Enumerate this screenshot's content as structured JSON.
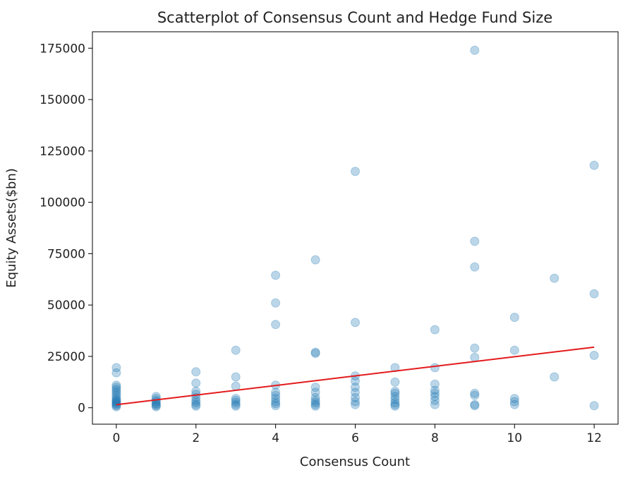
{
  "chart_data": {
    "type": "scatter",
    "title": "Scatterplot of Consensus Count and Hedge Fund Size",
    "xlabel": "Consensus Count",
    "ylabel": "Equity Assets($bn)",
    "xlim": [
      -0.6,
      12.6
    ],
    "ylim": [
      -8000,
      183000
    ],
    "xticks": [
      0,
      2,
      4,
      6,
      8,
      10,
      12
    ],
    "yticks": [
      0,
      25000,
      50000,
      75000,
      100000,
      125000,
      150000,
      175000
    ],
    "grid": false,
    "point_color": "#1f77b4",
    "point_opacity": 0.3,
    "points": [
      {
        "x": 0,
        "y": 19500
      },
      {
        "x": 0,
        "y": 17000
      },
      {
        "x": 0,
        "y": 11000
      },
      {
        "x": 0,
        "y": 10000
      },
      {
        "x": 0,
        "y": 9000
      },
      {
        "x": 0,
        "y": 8000
      },
      {
        "x": 0,
        "y": 7000
      },
      {
        "x": 0,
        "y": 6000
      },
      {
        "x": 0,
        "y": 5000
      },
      {
        "x": 0,
        "y": 4000
      },
      {
        "x": 0,
        "y": 3500
      },
      {
        "x": 0,
        "y": 3000
      },
      {
        "x": 0,
        "y": 2500
      },
      {
        "x": 0,
        "y": 2000
      },
      {
        "x": 0,
        "y": 1500
      },
      {
        "x": 0,
        "y": 1000
      },
      {
        "x": 0,
        "y": 500
      },
      {
        "x": 1,
        "y": 5500
      },
      {
        "x": 1,
        "y": 4500
      },
      {
        "x": 1,
        "y": 3500
      },
      {
        "x": 1,
        "y": 2800
      },
      {
        "x": 1,
        "y": 2000
      },
      {
        "x": 1,
        "y": 1500
      },
      {
        "x": 1,
        "y": 1000
      },
      {
        "x": 1,
        "y": 500
      },
      {
        "x": 2,
        "y": 17500
      },
      {
        "x": 2,
        "y": 12000
      },
      {
        "x": 2,
        "y": 8000
      },
      {
        "x": 2,
        "y": 6500
      },
      {
        "x": 2,
        "y": 5000
      },
      {
        "x": 2,
        "y": 3500
      },
      {
        "x": 2,
        "y": 2500
      },
      {
        "x": 2,
        "y": 1500
      },
      {
        "x": 2,
        "y": 800
      },
      {
        "x": 3,
        "y": 28000
      },
      {
        "x": 3,
        "y": 15000
      },
      {
        "x": 3,
        "y": 10500
      },
      {
        "x": 3,
        "y": 4500
      },
      {
        "x": 3,
        "y": 3500
      },
      {
        "x": 3,
        "y": 2500
      },
      {
        "x": 3,
        "y": 1500
      },
      {
        "x": 3,
        "y": 800
      },
      {
        "x": 4,
        "y": 64500
      },
      {
        "x": 4,
        "y": 51000
      },
      {
        "x": 4,
        "y": 40500
      },
      {
        "x": 4,
        "y": 11000
      },
      {
        "x": 4,
        "y": 7500
      },
      {
        "x": 4,
        "y": 6000
      },
      {
        "x": 4,
        "y": 4500
      },
      {
        "x": 4,
        "y": 3000
      },
      {
        "x": 4,
        "y": 2000
      },
      {
        "x": 4,
        "y": 1000
      },
      {
        "x": 5,
        "y": 72000
      },
      {
        "x": 5,
        "y": 27000
      },
      {
        "x": 5,
        "y": 26500
      },
      {
        "x": 5,
        "y": 10000
      },
      {
        "x": 5,
        "y": 7500
      },
      {
        "x": 5,
        "y": 5000
      },
      {
        "x": 5,
        "y": 3500
      },
      {
        "x": 5,
        "y": 2500
      },
      {
        "x": 5,
        "y": 1500
      },
      {
        "x": 5,
        "y": 800
      },
      {
        "x": 6,
        "y": 115000
      },
      {
        "x": 6,
        "y": 41500
      },
      {
        "x": 6,
        "y": 15500
      },
      {
        "x": 6,
        "y": 13000
      },
      {
        "x": 6,
        "y": 10000
      },
      {
        "x": 6,
        "y": 7500
      },
      {
        "x": 6,
        "y": 5000
      },
      {
        "x": 6,
        "y": 3000
      },
      {
        "x": 6,
        "y": 1500
      },
      {
        "x": 7,
        "y": 19500
      },
      {
        "x": 7,
        "y": 12500
      },
      {
        "x": 7,
        "y": 8000
      },
      {
        "x": 7,
        "y": 7000
      },
      {
        "x": 7,
        "y": 5500
      },
      {
        "x": 7,
        "y": 4000
      },
      {
        "x": 7,
        "y": 2500
      },
      {
        "x": 7,
        "y": 1500
      },
      {
        "x": 7,
        "y": 800
      },
      {
        "x": 8,
        "y": 38000
      },
      {
        "x": 8,
        "y": 19500
      },
      {
        "x": 8,
        "y": 11500
      },
      {
        "x": 8,
        "y": 8500
      },
      {
        "x": 8,
        "y": 7000
      },
      {
        "x": 8,
        "y": 5500
      },
      {
        "x": 8,
        "y": 3500
      },
      {
        "x": 8,
        "y": 1500
      },
      {
        "x": 9,
        "y": 174000
      },
      {
        "x": 9,
        "y": 81000
      },
      {
        "x": 9,
        "y": 68500
      },
      {
        "x": 9,
        "y": 29000
      },
      {
        "x": 9,
        "y": 24500
      },
      {
        "x": 9,
        "y": 7000
      },
      {
        "x": 9,
        "y": 6000
      },
      {
        "x": 9,
        "y": 1500
      },
      {
        "x": 9,
        "y": 1000
      },
      {
        "x": 10,
        "y": 44000
      },
      {
        "x": 10,
        "y": 28000
      },
      {
        "x": 10,
        "y": 4500
      },
      {
        "x": 10,
        "y": 3000
      },
      {
        "x": 10,
        "y": 1500
      },
      {
        "x": 11,
        "y": 63000
      },
      {
        "x": 11,
        "y": 15000
      },
      {
        "x": 12,
        "y": 118000
      },
      {
        "x": 12,
        "y": 55500
      },
      {
        "x": 12,
        "y": 25500
      },
      {
        "x": 12,
        "y": 1000
      }
    ],
    "fit_line": {
      "color": "#e41a1c",
      "x": [
        0,
        12
      ],
      "y": [
        1500,
        29500
      ]
    }
  }
}
